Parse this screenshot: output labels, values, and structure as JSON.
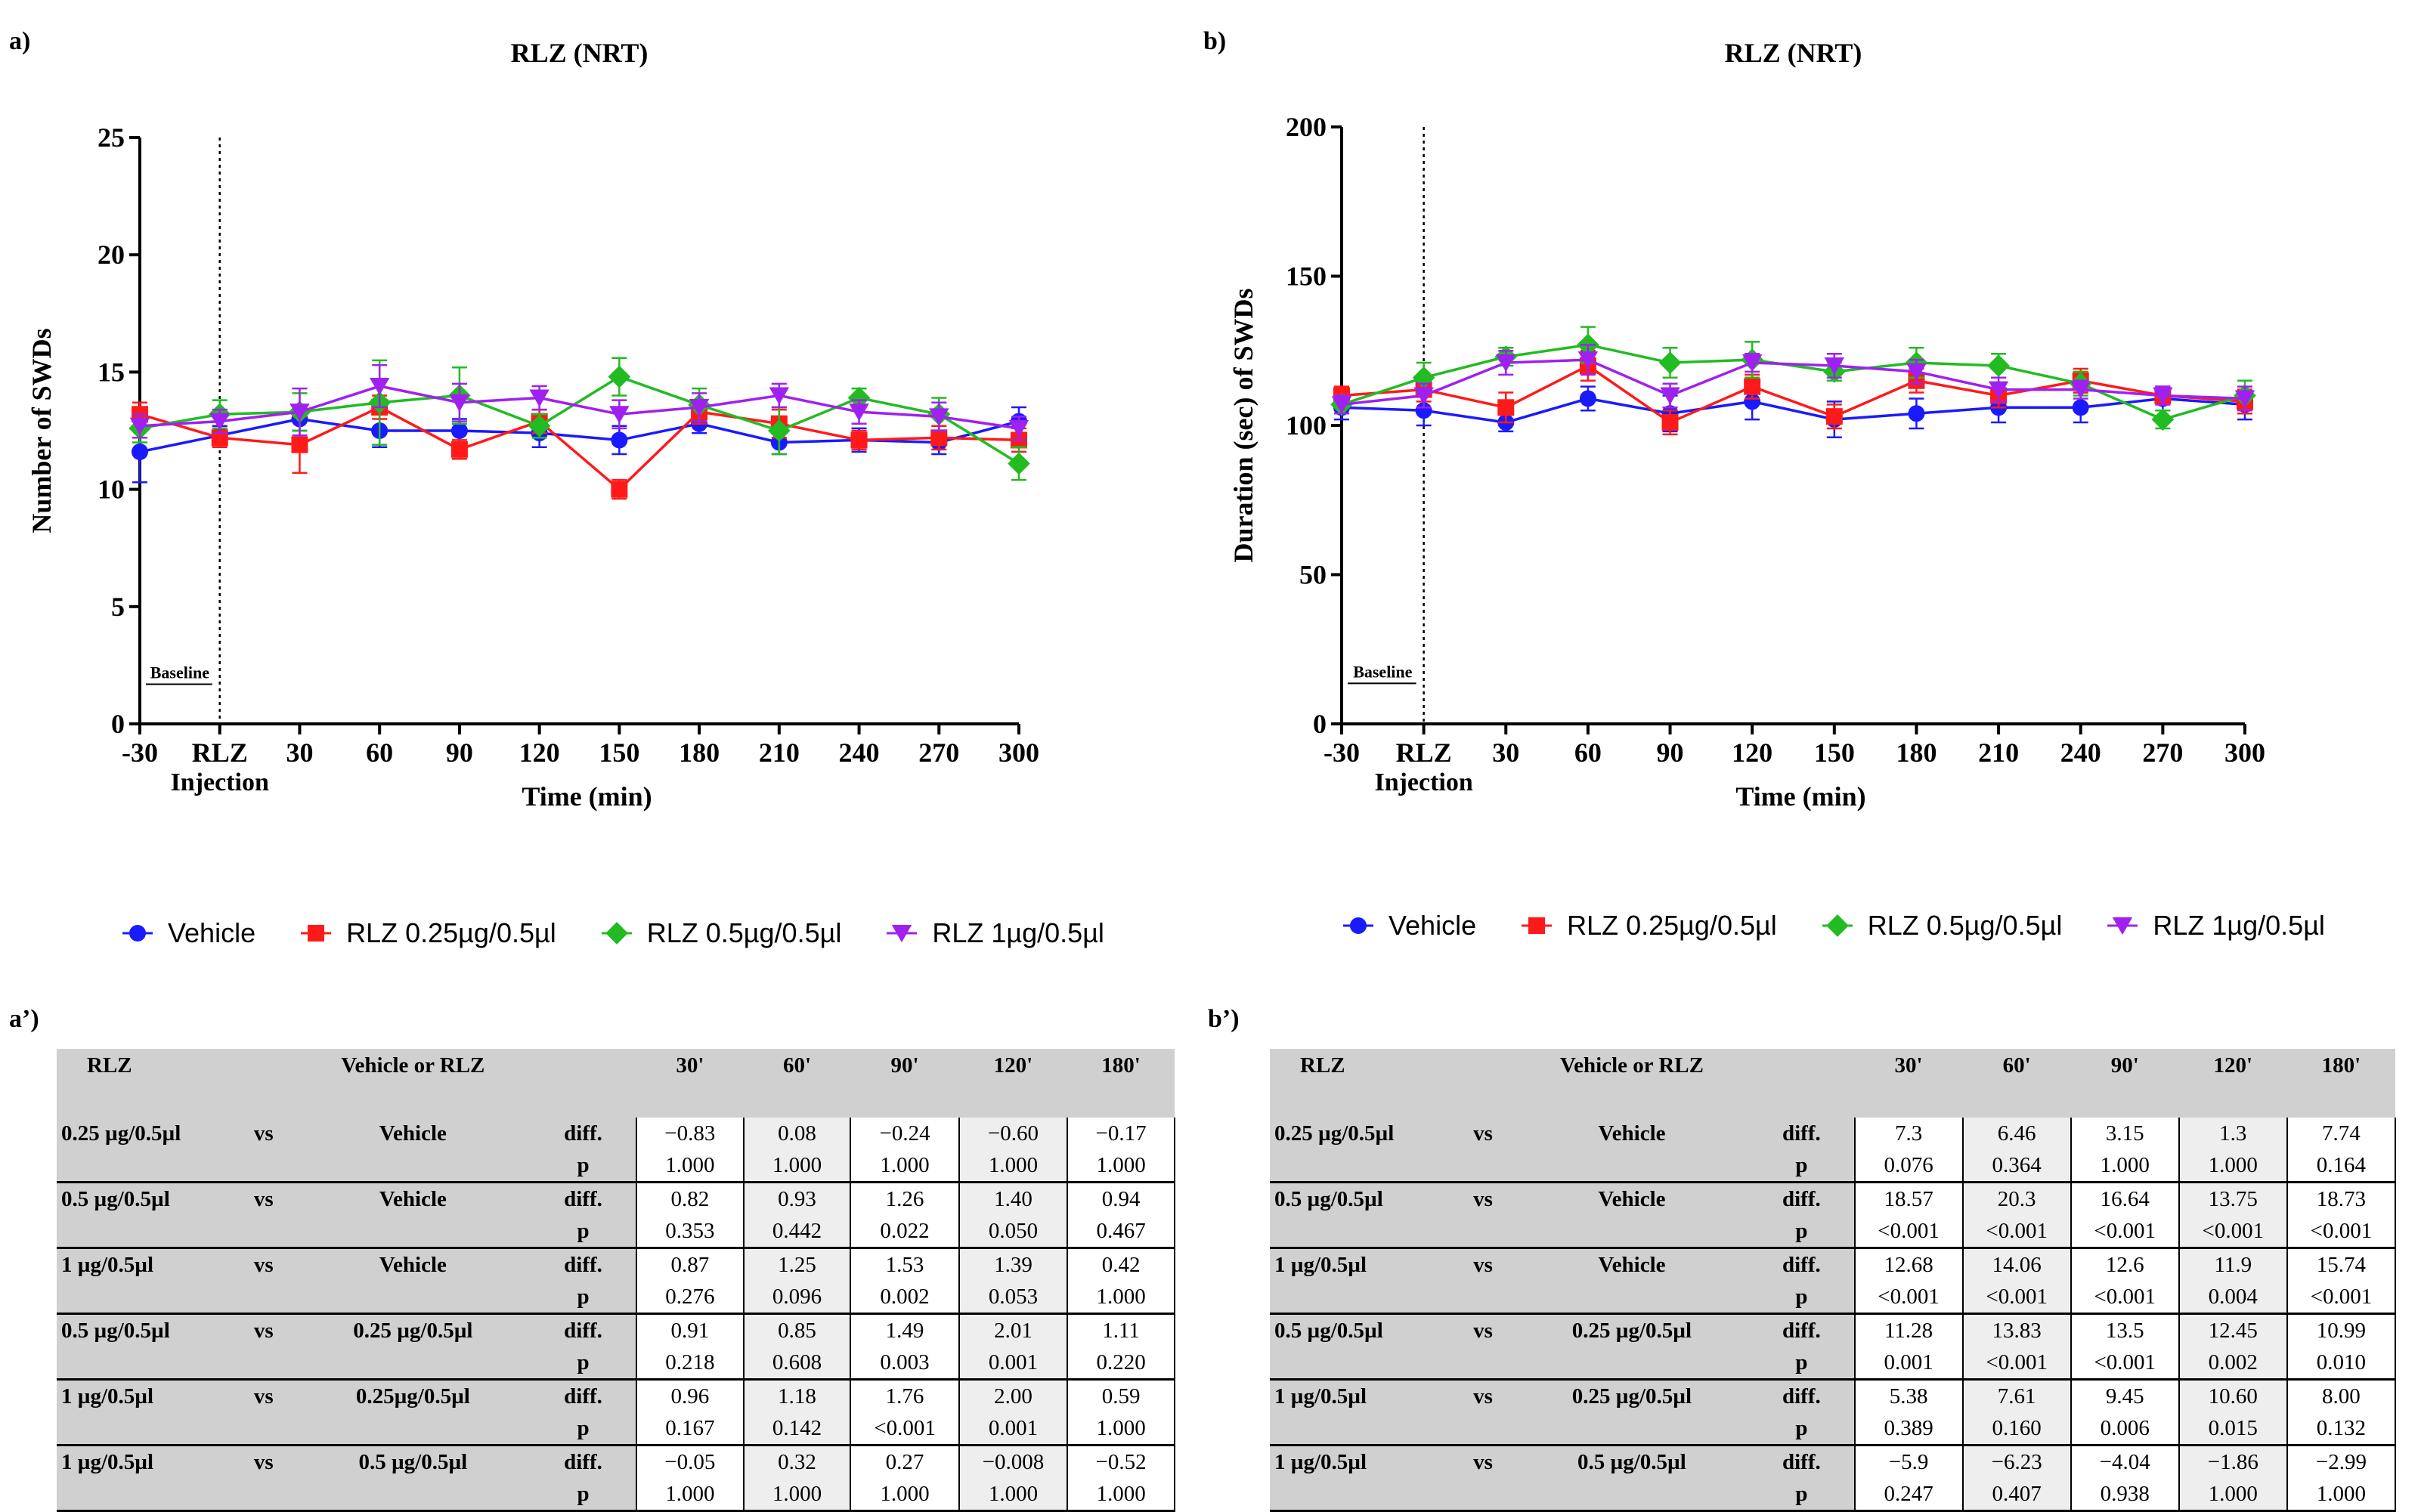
{
  "panels": {
    "a": "a)",
    "b": "b)",
    "a2": "a’)",
    "b2": "b’)"
  },
  "series_styles": [
    {
      "name": "Vehicle",
      "color": "#1a1aff",
      "marker": "circle"
    },
    {
      "name": "RLZ 0.25µg/0.5µl",
      "color": "#ff1a1a",
      "marker": "square"
    },
    {
      "name": "RLZ 0.5µg/0.5µl",
      "color": "#22bb22",
      "marker": "diamond"
    },
    {
      "name": "RLZ 1µg/0.5µl",
      "color": "#a020f0",
      "marker": "triangle-down"
    }
  ],
  "legend": [
    "Vehicle",
    "RLZ 0.25µg/0.5µl",
    "RLZ 0.5µg/0.5µl",
    "RLZ 1µg/0.5µl"
  ],
  "chart_data": [
    {
      "type": "line",
      "title": "RLZ (NRT)",
      "xlabel": "Time (min)",
      "ylabel": "Number of SWDs",
      "x": [
        -30,
        0,
        30,
        60,
        90,
        120,
        150,
        180,
        210,
        240,
        270,
        300
      ],
      "x_tick_labels": [
        "-30",
        "RLZ",
        "30",
        "60",
        "90",
        "120",
        "150",
        "180",
        "210",
        "240",
        "270",
        "300"
      ],
      "x_tick_sublabel": "Injection",
      "xlim": [
        -30,
        300
      ],
      "ylim": [
        0,
        25
      ],
      "y_ticks": [
        0,
        5,
        10,
        15,
        20,
        25
      ],
      "annotation": "Baseline",
      "series": [
        {
          "name": "Vehicle",
          "values": [
            11.6,
            12.3,
            13.0,
            12.5,
            12.5,
            12.4,
            12.1,
            12.8,
            12.0,
            12.1,
            12.0,
            12.9
          ],
          "errors": [
            1.3,
            0.4,
            0.5,
            0.7,
            0.5,
            0.6,
            0.6,
            0.4,
            0.5,
            0.5,
            0.5,
            0.6
          ]
        },
        {
          "name": "RLZ 0.25µg/0.5µl",
          "values": [
            13.2,
            12.2,
            11.9,
            13.5,
            11.7,
            12.9,
            10.0,
            13.3,
            12.8,
            12.1,
            12.2,
            12.1
          ],
          "errors": [
            0.5,
            0.4,
            1.2,
            0.5,
            0.4,
            0.5,
            0.4,
            0.5,
            0.6,
            0.4,
            0.5,
            0.5
          ]
        },
        {
          "name": "RLZ 0.5µg/0.5µl",
          "values": [
            12.6,
            13.2,
            13.3,
            13.7,
            14.0,
            12.7,
            14.8,
            13.6,
            12.5,
            13.9,
            13.2,
            11.1
          ],
          "errors": [
            0.6,
            0.6,
            0.8,
            1.8,
            1.2,
            0.5,
            0.8,
            0.7,
            1.0,
            0.4,
            0.7,
            0.7
          ]
        },
        {
          "name": "RLZ 1µg/0.5µl",
          "values": [
            12.7,
            12.9,
            13.3,
            14.4,
            13.7,
            13.9,
            13.2,
            13.5,
            14.0,
            13.3,
            13.1,
            12.6
          ],
          "errors": [
            0.5,
            0.5,
            1.0,
            0.9,
            0.8,
            0.5,
            0.6,
            0.6,
            0.5,
            0.5,
            0.6,
            0.5
          ]
        }
      ]
    },
    {
      "type": "line",
      "title": "RLZ (NRT)",
      "xlabel": "Time (min)",
      "ylabel": "Duration (sec) of SWDs",
      "x": [
        -30,
        0,
        30,
        60,
        90,
        120,
        150,
        180,
        210,
        240,
        270,
        300
      ],
      "x_tick_labels": [
        "-30",
        "RLZ",
        "30",
        "60",
        "90",
        "120",
        "150",
        "180",
        "210",
        "240",
        "270",
        "300"
      ],
      "x_tick_sublabel": "Injection",
      "xlim": [
        -30,
        300
      ],
      "ylim": [
        0,
        200
      ],
      "y_ticks": [
        0,
        50,
        100,
        150,
        200
      ],
      "annotation": "Baseline",
      "series": [
        {
          "name": "Vehicle",
          "values": [
            106,
            105,
            101,
            109,
            104,
            108,
            102,
            104,
            106,
            106,
            109,
            107
          ],
          "errors": [
            4,
            5,
            3,
            4,
            6,
            6,
            6,
            5,
            5,
            5,
            4,
            5
          ]
        },
        {
          "name": "RLZ 0.25µg/0.5µl",
          "values": [
            110,
            112,
            106,
            120,
            101,
            113,
            103,
            115,
            110,
            115,
            110,
            108
          ],
          "errors": [
            3,
            4,
            5,
            5,
            4,
            4,
            4,
            4,
            4,
            4,
            3,
            4
          ]
        },
        {
          "name": "RLZ 0.5µg/0.5µl",
          "values": [
            107,
            116,
            123,
            127,
            121,
            122,
            118,
            121,
            120,
            114,
            102,
            110
          ],
          "errors": [
            3,
            5,
            3,
            6,
            5,
            6,
            3,
            5,
            4,
            4,
            3,
            5
          ]
        },
        {
          "name": "RLZ 1µg/0.5µl",
          "values": [
            107,
            110,
            121,
            122,
            110,
            121,
            120,
            118,
            112,
            112,
            110,
            109
          ],
          "errors": [
            3,
            4,
            4,
            5,
            4,
            3,
            4,
            4,
            4,
            3,
            3,
            4
          ]
        }
      ]
    }
  ],
  "tables": [
    {
      "headers": [
        "RLZ",
        "Vehicle or RLZ",
        "30'",
        "60'",
        "90'",
        "120'",
        "180'"
      ],
      "rows": [
        {
          "rlz": "0.25 µg/0.5µl",
          "vs": "vs",
          "cmp": "Vehicle",
          "diff": [
            "−0.83",
            "0.08",
            "−0.24",
            "−0.60",
            "−0.17"
          ],
          "p": [
            "1.000",
            "1.000",
            "1.000",
            "1.000",
            "1.000"
          ]
        },
        {
          "rlz": "0.5 µg/0.5µl",
          "vs": "vs",
          "cmp": "Vehicle",
          "diff": [
            "0.82",
            "0.93",
            "1.26",
            "1.40",
            "0.94"
          ],
          "p": [
            "0.353",
            "0.442",
            "0.022",
            "0.050",
            "0.467"
          ]
        },
        {
          "rlz": "1 µg/0.5µl",
          "vs": "vs",
          "cmp": "Vehicle",
          "diff": [
            "0.87",
            "1.25",
            "1.53",
            "1.39",
            "0.42"
          ],
          "p": [
            "0.276",
            "0.096",
            "0.002",
            "0.053",
            "1.000"
          ]
        },
        {
          "rlz": "0.5 µg/0.5µl",
          "vs": "vs",
          "cmp": "0.25 µg/0.5µl",
          "diff": [
            "0.91",
            "0.85",
            "1.49",
            "2.01",
            "1.11"
          ],
          "p": [
            "0.218",
            "0.608",
            "0.003",
            "0.001",
            "0.220"
          ]
        },
        {
          "rlz": "1 µg/0.5µl",
          "vs": "vs",
          "cmp": "0.25µg/0.5µl",
          "diff": [
            "0.96",
            "1.18",
            "1.76",
            "2.00",
            "0.59"
          ],
          "p": [
            "0.167",
            "0.142",
            "<0.001",
            "0.001",
            "1.000"
          ]
        },
        {
          "rlz": "1 µg/0.5µl",
          "vs": "vs",
          "cmp": "0.5 µg/0.5µl",
          "diff": [
            "−0.05",
            "0.32",
            "0.27",
            "−0.008",
            "−0.52"
          ],
          "p": [
            "1.000",
            "1.000",
            "1.000",
            "1.000",
            "1.000"
          ]
        }
      ]
    },
    {
      "headers": [
        "RLZ",
        "Vehicle or RLZ",
        "30'",
        "60'",
        "90'",
        "120'",
        "180'"
      ],
      "rows": [
        {
          "rlz": "0.25 µg/0.5µl",
          "vs": "vs",
          "cmp": "Vehicle",
          "diff": [
            "7.3",
            "6.46",
            "3.15",
            "1.3",
            "7.74"
          ],
          "p": [
            "0.076",
            "0.364",
            "1.000",
            "1.000",
            "0.164"
          ]
        },
        {
          "rlz": "0.5 µg/0.5µl",
          "vs": "vs",
          "cmp": "Vehicle",
          "diff": [
            "18.57",
            "20.3",
            "16.64",
            "13.75",
            "18.73"
          ],
          "p": [
            "<0.001",
            "<0.001",
            "<0.001",
            "<0.001",
            "<0.001"
          ]
        },
        {
          "rlz": "1 µg/0.5µl",
          "vs": "vs",
          "cmp": "Vehicle",
          "diff": [
            "12.68",
            "14.06",
            "12.6",
            "11.9",
            "15.74"
          ],
          "p": [
            "<0.001",
            "<0.001",
            "<0.001",
            "0.004",
            "<0.001"
          ]
        },
        {
          "rlz": "0.5 µg/0.5µl",
          "vs": "vs",
          "cmp": "0.25 µg/0.5µl",
          "diff": [
            "11.28",
            "13.83",
            "13.5",
            "12.45",
            "10.99"
          ],
          "p": [
            "0.001",
            "<0.001",
            "<0.001",
            "0.002",
            "0.010"
          ]
        },
        {
          "rlz": "1 µg/0.5µl",
          "vs": "vs",
          "cmp": "0.25 µg/0.5µl",
          "diff": [
            "5.38",
            "7.61",
            "9.45",
            "10.60",
            "8.00"
          ],
          "p": [
            "0.389",
            "0.160",
            "0.006",
            "0.015",
            "0.132"
          ]
        },
        {
          "rlz": "1 µg/0.5µl",
          "vs": "vs",
          "cmp": "0.5 µg/0.5µl",
          "diff": [
            "−5.9",
            "−6.23",
            "−4.04",
            "−1.86",
            "−2.99"
          ],
          "p": [
            "0.247",
            "0.407",
            "0.938",
            "1.000",
            "1.000"
          ]
        }
      ],
      "row_labels": {
        "diff": "diff.",
        "p": "p"
      }
    }
  ]
}
